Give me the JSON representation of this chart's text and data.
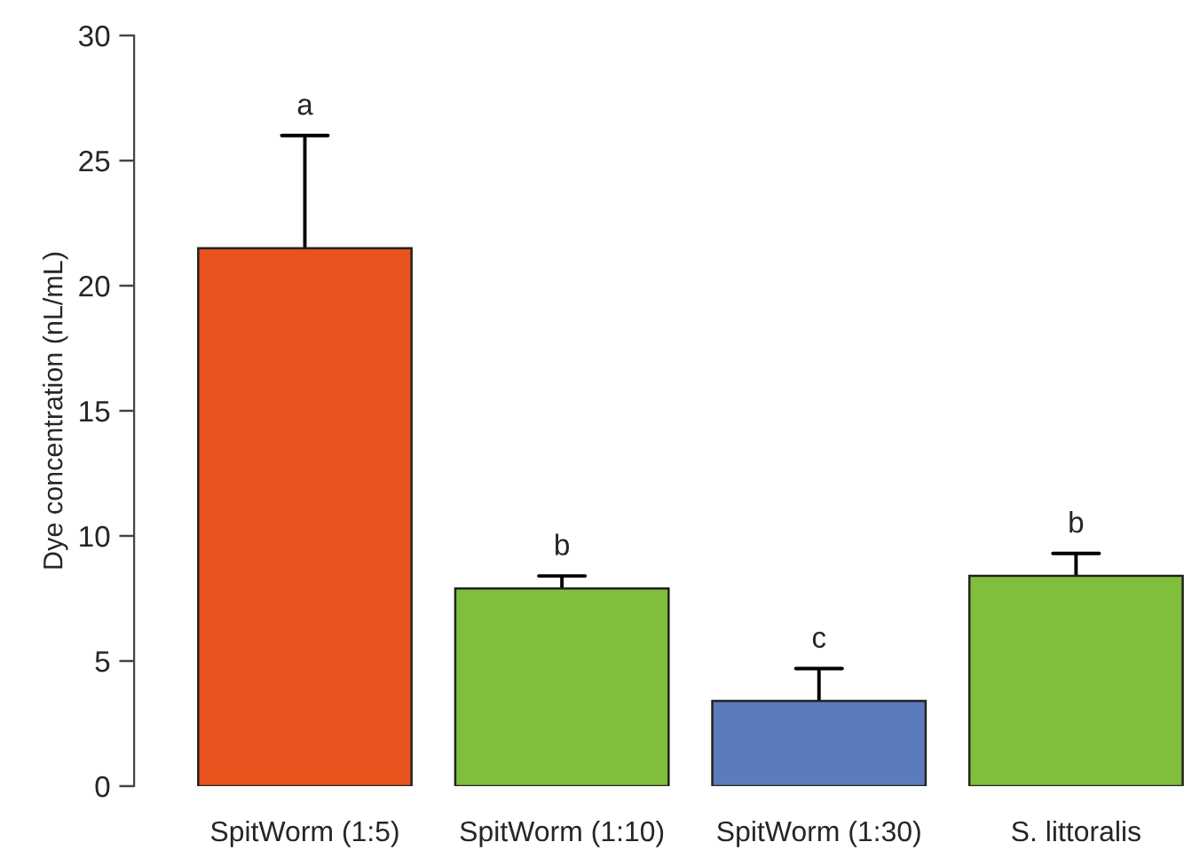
{
  "chart_data": {
    "type": "bar",
    "ylabel": "Dye concentration (nL/mL)",
    "categories": [
      "SpitWorm (1:5)",
      "SpitWorm (1:10)",
      "SpitWorm (1:30)",
      "S. littoralis"
    ],
    "values": [
      21.5,
      7.9,
      3.4,
      8.4
    ],
    "colors": [
      "#e9531d",
      "#80bf3b",
      "#5b7bbd",
      "#80bf3b"
    ],
    "errors": [
      [
        21.5,
        26.0
      ],
      [
        7.9,
        8.4
      ],
      [
        3.4,
        4.7
      ],
      [
        8.4,
        9.3
      ]
    ],
    "ylim": [
      0,
      30
    ],
    "yticks": [
      0,
      5,
      10,
      15,
      20,
      25,
      30
    ],
    "annotations": [
      {
        "text": "a",
        "x": "SpitWorm (1:5)",
        "y": 26.0
      },
      {
        "text": "b",
        "x": "SpitWorm (1:10)",
        "y": 8.4
      },
      {
        "text": "c",
        "x": "SpitWorm (1:30)",
        "y": 4.7
      },
      {
        "text": "b",
        "x": "S. littoralis",
        "y": 9.3
      }
    ],
    "grid": false,
    "legend": false
  }
}
